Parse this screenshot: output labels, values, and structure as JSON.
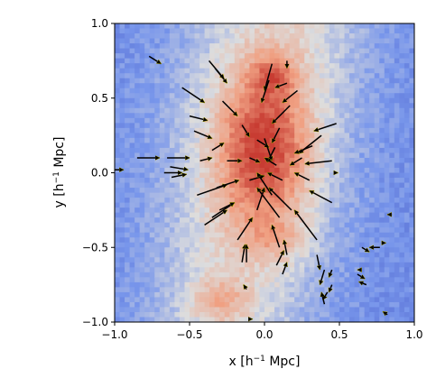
{
  "chart_data": {
    "type": "heatmap",
    "subtype": "density-map-with-velocity-vectors",
    "xlabel": {
      "main": "x [h",
      "sup": "−1",
      "unit": " Mpc]"
    },
    "ylabel": {
      "main": "y [h",
      "sup": "−1",
      "unit": " Mpc]"
    },
    "xlim": [
      -1.0,
      1.0
    ],
    "ylim": [
      -1.0,
      1.0
    ],
    "xticks": [
      -1.0,
      -0.5,
      0.0,
      0.5,
      1.0
    ],
    "yticks": [
      -1.0,
      -0.5,
      0.0,
      0.5,
      1.0
    ],
    "xtick_labels": [
      "−1.0",
      "−0.5",
      "0.0",
      "0.5",
      "1.0"
    ],
    "ytick_labels": [
      "−1.0",
      "−0.5",
      "0.0",
      "0.5",
      "1.0"
    ],
    "grid": false,
    "colormap": "coolwarm",
    "colors": {
      "low": "#3b4cc0",
      "mid": "#dddddd",
      "high": "#d24b40",
      "arrow": "#000000",
      "arrow_edge": "#f0e000"
    },
    "density_blobs": [
      {
        "x": 0.0,
        "y": 0.15,
        "sx": 0.22,
        "sy": 0.35,
        "a": 1.0
      },
      {
        "x": 0.05,
        "y": 0.65,
        "sx": 0.1,
        "sy": 0.1,
        "a": 0.55
      },
      {
        "x": -0.3,
        "y": -0.85,
        "sx": 0.14,
        "sy": 0.1,
        "a": 0.5
      },
      {
        "x": 0.1,
        "y": -0.45,
        "sx": 0.15,
        "sy": 0.1,
        "a": 0.35
      },
      {
        "x": -0.1,
        "y": 0.3,
        "sx": 0.45,
        "sy": 0.75,
        "a": 0.3
      }
    ],
    "vectors": [
      {
        "x": -0.77,
        "y": 0.78,
        "u": 0.08,
        "v": -0.05
      },
      {
        "x": -0.37,
        "y": 0.75,
        "u": 0.1,
        "v": -0.12
      },
      {
        "x": -0.33,
        "y": 0.7,
        "u": 0.08,
        "v": -0.1
      },
      {
        "x": 0.15,
        "y": 0.75,
        "u": 0.0,
        "v": -0.05
      },
      {
        "x": 0.05,
        "y": 0.73,
        "u": -0.05,
        "v": -0.18
      },
      {
        "x": 0.03,
        "y": 0.62,
        "u": -0.05,
        "v": -0.15
      },
      {
        "x": 0.15,
        "y": 0.6,
        "u": -0.08,
        "v": -0.03
      },
      {
        "x": -0.55,
        "y": 0.57,
        "u": 0.15,
        "v": -0.1
      },
      {
        "x": -0.28,
        "y": 0.48,
        "u": 0.1,
        "v": -0.1
      },
      {
        "x": -0.5,
        "y": 0.38,
        "u": 0.12,
        "v": -0.03
      },
      {
        "x": 0.22,
        "y": 0.55,
        "u": -0.1,
        "v": -0.08
      },
      {
        "x": 0.17,
        "y": 0.45,
        "u": -0.12,
        "v": -0.12
      },
      {
        "x": 0.48,
        "y": 0.33,
        "u": -0.15,
        "v": -0.05
      },
      {
        "x": 0.38,
        "y": 0.25,
        "u": -0.15,
        "v": -0.12
      },
      {
        "x": 0.32,
        "y": 0.18,
        "u": -0.12,
        "v": -0.05
      },
      {
        "x": -0.47,
        "y": 0.28,
        "u": 0.12,
        "v": -0.05
      },
      {
        "x": -0.15,
        "y": 0.32,
        "u": 0.05,
        "v": -0.08
      },
      {
        "x": -0.35,
        "y": 0.15,
        "u": 0.08,
        "v": 0.05
      },
      {
        "x": -0.05,
        "y": 0.22,
        "u": 0.08,
        "v": -0.05
      },
      {
        "x": 0.1,
        "y": 0.3,
        "u": -0.05,
        "v": -0.1
      },
      {
        "x": 0.0,
        "y": 0.23,
        "u": 0.05,
        "v": -0.15
      },
      {
        "x": 0.07,
        "y": 0.17,
        "u": -0.05,
        "v": -0.1
      },
      {
        "x": -0.43,
        "y": 0.08,
        "u": 0.08,
        "v": 0.02
      },
      {
        "x": -0.25,
        "y": 0.08,
        "u": 0.1,
        "v": 0.0
      },
      {
        "x": -0.1,
        "y": 0.1,
        "u": 0.07,
        "v": -0.03
      },
      {
        "x": 0.08,
        "y": 0.05,
        "u": -0.08,
        "v": 0.05
      },
      {
        "x": 0.25,
        "y": 0.1,
        "u": -0.08,
        "v": -0.05
      },
      {
        "x": 0.45,
        "y": 0.08,
        "u": -0.18,
        "v": -0.02
      },
      {
        "x": -0.85,
        "y": 0.1,
        "u": 0.15,
        "v": 0.0
      },
      {
        "x": -0.65,
        "y": 0.1,
        "u": 0.15,
        "v": 0.0
      },
      {
        "x": -1.0,
        "y": 0.02,
        "u": 0.06,
        "v": 0.0
      },
      {
        "x": -0.67,
        "y": 0.0,
        "u": 0.12,
        "v": 0.0
      },
      {
        "x": -0.63,
        "y": 0.04,
        "u": 0.12,
        "v": -0.02
      },
      {
        "x": -0.62,
        "y": -0.03,
        "u": 0.1,
        "v": 0.02
      },
      {
        "x": -0.45,
        "y": -0.15,
        "u": 0.2,
        "v": 0.07
      },
      {
        "x": -0.32,
        "y": -0.1,
        "u": 0.15,
        "v": 0.05
      },
      {
        "x": -0.1,
        "y": -0.05,
        "u": 0.1,
        "v": 0.03
      },
      {
        "x": 0.12,
        "y": -0.05,
        "u": -0.1,
        "v": 0.05
      },
      {
        "x": 0.3,
        "y": -0.05,
        "u": -0.1,
        "v": 0.05
      },
      {
        "x": 0.45,
        "y": -0.2,
        "u": -0.15,
        "v": 0.08
      },
      {
        "x": 0.05,
        "y": -0.15,
        "u": -0.1,
        "v": 0.15
      },
      {
        "x": -0.05,
        "y": -0.25,
        "u": 0.05,
        "v": 0.15
      },
      {
        "x": 0.1,
        "y": -0.3,
        "u": -0.15,
        "v": 0.2
      },
      {
        "x": 0.18,
        "y": -0.25,
        "u": -0.15,
        "v": 0.15
      },
      {
        "x": -0.4,
        "y": -0.35,
        "u": 0.15,
        "v": 0.1
      },
      {
        "x": -0.35,
        "y": -0.3,
        "u": 0.15,
        "v": 0.1
      },
      {
        "x": -0.3,
        "y": -0.25,
        "u": 0.1,
        "v": 0.05
      },
      {
        "x": -0.18,
        "y": -0.45,
        "u": 0.1,
        "v": 0.15
      },
      {
        "x": 0.1,
        "y": -0.5,
        "u": -0.05,
        "v": 0.15
      },
      {
        "x": 0.15,
        "y": -0.55,
        "u": -0.02,
        "v": 0.1
      },
      {
        "x": 0.35,
        "y": -0.45,
        "u": -0.15,
        "v": 0.2
      },
      {
        "x": -0.15,
        "y": -0.6,
        "u": 0.02,
        "v": 0.12
      },
      {
        "x": -0.12,
        "y": -0.6,
        "u": 0.0,
        "v": 0.12
      },
      {
        "x": -0.12,
        "y": -0.78,
        "u": -0.02,
        "v": 0.03
      },
      {
        "x": 0.08,
        "y": -0.62,
        "u": 0.05,
        "v": 0.1
      },
      {
        "x": 0.12,
        "y": -0.68,
        "u": 0.03,
        "v": 0.08
      },
      {
        "x": 0.35,
        "y": -0.55,
        "u": 0.02,
        "v": -0.1
      },
      {
        "x": 0.45,
        "y": -0.65,
        "u": -0.02,
        "v": -0.05
      },
      {
        "x": 0.4,
        "y": -0.65,
        "u": -0.03,
        "v": -0.1
      },
      {
        "x": 0.45,
        "y": -0.75,
        "u": -0.02,
        "v": -0.05
      },
      {
        "x": 0.42,
        "y": -0.8,
        "u": -0.03,
        "v": -0.05
      },
      {
        "x": 0.4,
        "y": -0.88,
        "u": -0.02,
        "v": 0.08
      },
      {
        "x": 0.65,
        "y": -0.5,
        "u": 0.05,
        "v": -0.03
      },
      {
        "x": 0.77,
        "y": -0.5,
        "u": -0.07,
        "v": 0.0
      },
      {
        "x": 0.62,
        "y": -0.68,
        "u": 0.05,
        "v": -0.03
      },
      {
        "x": 0.68,
        "y": -0.75,
        "u": -0.05,
        "v": 0.02
      },
      {
        "x": 0.65,
        "y": -0.65,
        "u": -0.03,
        "v": 0.0
      },
      {
        "x": 0.82,
        "y": -0.95,
        "u": -0.03,
        "v": 0.02
      },
      {
        "x": 0.85,
        "y": -0.28,
        "u": -0.03,
        "v": 0.0
      },
      {
        "x": 0.78,
        "y": -0.47,
        "u": 0.03,
        "v": 0.0
      },
      {
        "x": -0.1,
        "y": -0.98,
        "u": 0.02,
        "v": 0.0
      },
      {
        "x": 0.48,
        "y": 0.0,
        "u": 0.01,
        "v": 0.0
      }
    ]
  }
}
